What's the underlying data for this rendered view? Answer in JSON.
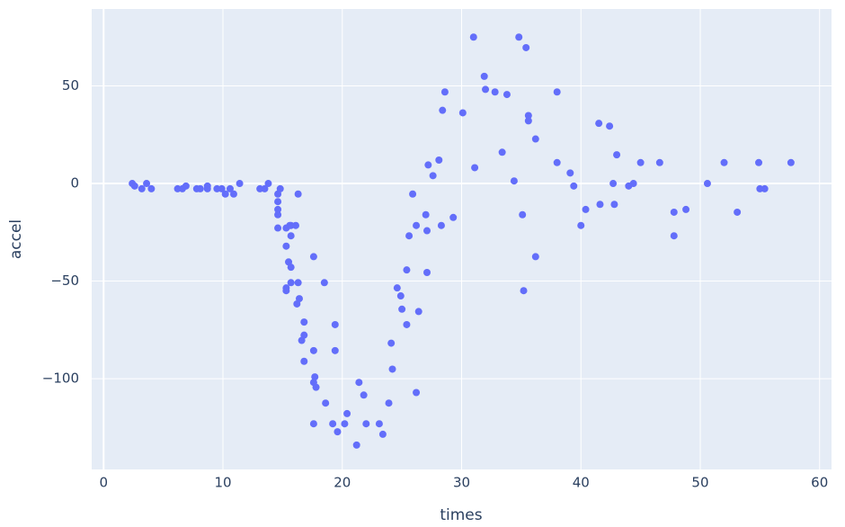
{
  "chart_data": {
    "type": "scatter",
    "x_label": "times",
    "y_label": "accel",
    "color": "#636efa",
    "grid": true,
    "xlim": [
      -1,
      61
    ],
    "ylim": [
      -146.5,
      89.4
    ],
    "xticks": [
      0,
      10,
      20,
      30,
      40,
      50,
      60
    ],
    "yticks": [
      {
        "value": -100,
        "label": "−100"
      },
      {
        "value": -50,
        "label": "−50"
      },
      0,
      50
    ],
    "x": [
      2.4,
      2.6,
      3.2,
      3.6,
      4.0,
      6.2,
      6.6,
      6.9,
      7.8,
      8.1,
      8.7,
      8.7,
      9.5,
      9.9,
      10.2,
      10.6,
      10.9,
      11.4,
      13.1,
      13.5,
      13.8,
      14.6,
      14.6,
      14.6,
      14.6,
      14.6,
      14.8,
      15.3,
      15.3,
      15.5,
      15.3,
      15.3,
      15.6,
      15.7,
      15.7,
      15.7,
      15.7,
      16.1,
      16.3,
      16.3,
      16.2,
      16.4,
      16.6,
      16.8,
      16.8,
      16.8,
      17.6,
      17.6,
      17.6,
      17.6,
      17.7,
      17.8,
      18.5,
      18.6,
      19.2,
      19.4,
      19.4,
      19.6,
      20.2,
      20.4,
      21.2,
      21.4,
      21.8,
      22.0,
      23.1,
      23.4,
      23.9,
      24.1,
      24.2,
      24.6,
      24.9,
      25.0,
      25.4,
      25.4,
      25.6,
      25.9,
      26.2,
      26.2,
      26.4,
      27.0,
      27.1,
      27.2,
      27.1,
      27.6,
      28.1,
      28.3,
      28.4,
      28.6,
      29.3,
      30.1,
      31.0,
      31.1,
      31.9,
      32.0,
      32.8,
      33.4,
      33.8,
      34.4,
      34.8,
      35.1,
      35.2,
      35.4,
      35.6,
      35.6,
      36.2,
      36.2,
      38.0,
      38.0,
      39.1,
      39.4,
      40.0,
      40.4,
      41.5,
      41.6,
      42.4,
      42.7,
      42.8,
      43.0,
      44.0,
      44.4,
      45.0,
      46.6,
      47.8,
      47.8,
      48.8,
      50.6,
      52.0,
      53.1,
      54.9,
      55.0,
      55.4,
      57.6
    ],
    "values": [
      0,
      -1.3,
      -2.7,
      0,
      -2.7,
      -2.7,
      -2.7,
      -1.3,
      -2.7,
      -2.7,
      -1.3,
      -2.7,
      -2.7,
      -2.7,
      -5.4,
      -2.7,
      -5.4,
      0,
      -2.7,
      -2.7,
      0,
      -5.4,
      -9.3,
      -13.3,
      -16,
      -22.8,
      -2.7,
      -22.8,
      -32.1,
      -40.2,
      -53.5,
      -54.9,
      -21.5,
      -21.5,
      -26.8,
      -50.8,
      -42.9,
      -21.5,
      -5.4,
      -50.8,
      -61.7,
      -59,
      -80.4,
      -71,
      -77.7,
      -91.1,
      -37.5,
      -85.6,
      -123.1,
      -101.9,
      -99.1,
      -104.4,
      -50.8,
      -112.5,
      -123.1,
      -72.3,
      -85.6,
      -127.2,
      -123.1,
      -117.9,
      -134,
      -101.9,
      -108.4,
      -123.1,
      -123.1,
      -128.5,
      -112.5,
      -81.8,
      -95.1,
      -53.5,
      -57.6,
      -64.4,
      -44.3,
      -72.3,
      -26.8,
      -5.4,
      -21.5,
      -107.1,
      -65.6,
      -16,
      -24.2,
      9.5,
      -45.6,
      4,
      12,
      -21.5,
      37.5,
      46.9,
      -17.4,
      36.2,
      75,
      8.1,
      54.9,
      48.2,
      46.9,
      16,
      45.6,
      1.3,
      75,
      -16,
      -54.9,
      69.6,
      34.8,
      32.1,
      22.8,
      -37.5,
      46.9,
      10.7,
      5.4,
      -1.3,
      -21.5,
      -13.3,
      30.8,
      -10.7,
      29.4,
      0,
      -10.7,
      14.7,
      -1.3,
      0,
      10.7,
      10.7,
      -14.7,
      -26.8,
      -13.3,
      0,
      10.7,
      -14.7,
      10.7,
      -2.7,
      -2.7,
      10.7
    ]
  }
}
